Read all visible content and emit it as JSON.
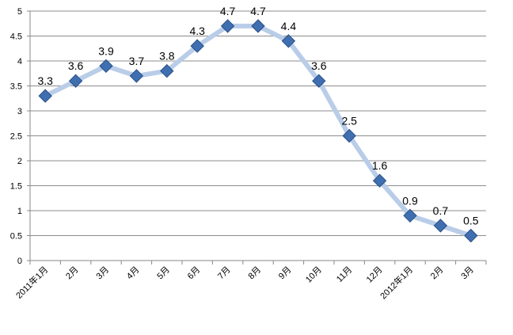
{
  "chart_data": {
    "type": "line",
    "categories": [
      "2011年1月",
      "2月",
      "3月",
      "4月",
      "5月",
      "6月",
      "7月",
      "8月",
      "9月",
      "10月",
      "11月",
      "12月",
      "2012年1月",
      "2月",
      "3月"
    ],
    "series": [
      {
        "values": [
          3.3,
          3.6,
          3.9,
          3.7,
          3.8,
          4.3,
          4.7,
          4.7,
          4.4,
          3.6,
          2.5,
          1.6,
          0.9,
          0.7,
          0.5
        ]
      }
    ],
    "data_labels": [
      "3.3",
      "3.6",
      "3.9",
      "3.7",
      "3.8",
      "4.3",
      "4.7",
      "4.7",
      "4.4",
      "3.6",
      "2.5",
      "1.6",
      "0.9",
      "0.7",
      "0.5"
    ],
    "y_ticks": [
      "0",
      "0.5",
      "1",
      "1.5",
      "2",
      "2.5",
      "3",
      "3.5",
      "4",
      "4.5",
      "5"
    ],
    "ylim": [
      0,
      5
    ],
    "grid": true,
    "line_color": "#b9cde8",
    "marker_color": "#3f6fb0",
    "marker_edge_color": "#2a4f86"
  }
}
